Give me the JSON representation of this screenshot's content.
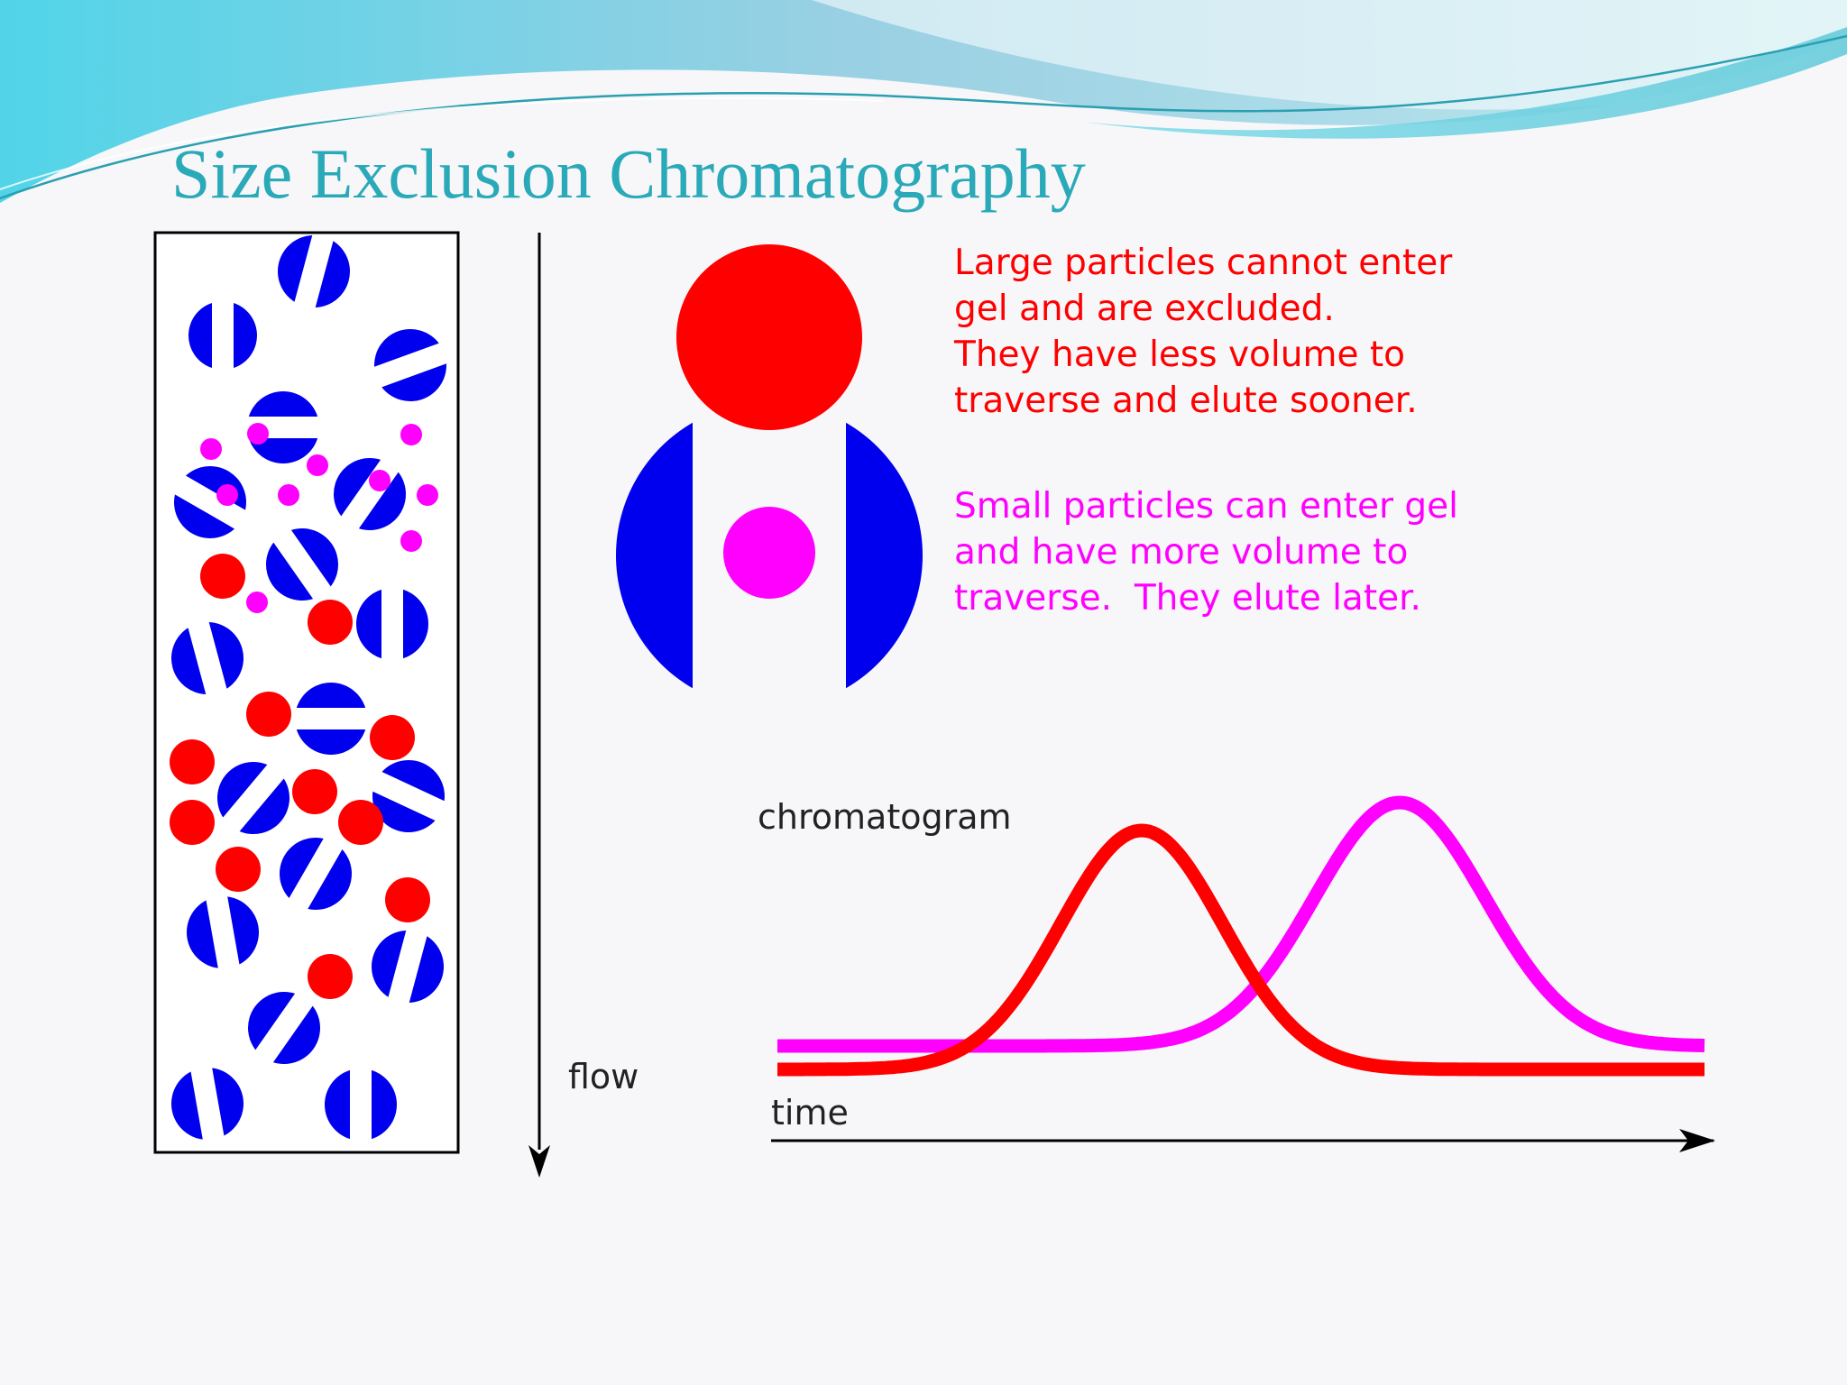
{
  "slide": {
    "title": "Size Exclusion Chromatography"
  },
  "colors": {
    "header_wave": "#5fc9d9",
    "title": "#2aa9b8",
    "gel_bead": "#0000ee",
    "large_particle": "#ff0000",
    "small_particle": "#ff00ff"
  },
  "column": {
    "flow_label": "flow"
  },
  "explanation": {
    "large": "Large particles cannot enter\ngel and are excluded.\nThey have less volume to\ntraverse and elute sooner.",
    "small": "Small particles can enter gel\nand have more volume to\ntraverse.  They elute later."
  },
  "chromatogram": {
    "title": "chromatogram",
    "axis_label": "time",
    "traces": [
      "large particles",
      "small particles"
    ]
  }
}
